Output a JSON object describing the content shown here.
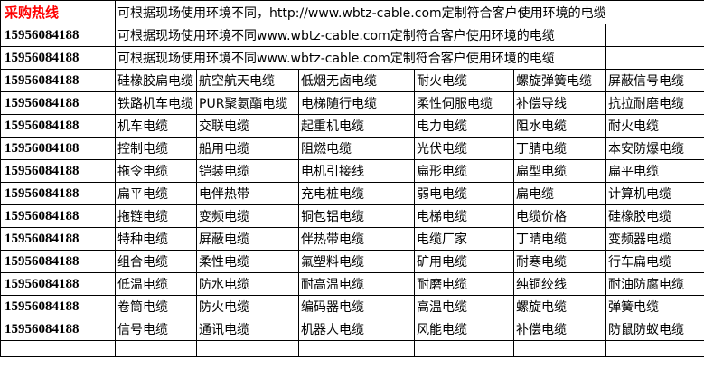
{
  "header": {
    "hotline_label": "采购热线",
    "hotline_color": "#ff0000",
    "note": "可根据现场使用环境不同，http://www.wbtz-cable.com定制符合客户使用环境的电缆"
  },
  "phone": "15956084188",
  "notes": [
    "可根据现场使用环境不同www.wbtz-cable.com定制符合客户使用环境的电缆",
    "可根据现场使用环境不同www.wbtz-cable.com定制符合客户使用环境的电缆"
  ],
  "rows": [
    [
      "15956084188",
      "硅橡胶扁电缆",
      "航空航天电缆",
      "低烟无卤电缆",
      "耐火电缆",
      "螺旋弹簧电缆",
      "屏蔽信号电缆"
    ],
    [
      "15956084188",
      "铁路机车电缆",
      "PUR聚氨酯电缆",
      "电梯随行电缆",
      "柔性伺服电缆",
      "补偿导线",
      "抗拉耐磨电缆"
    ],
    [
      "15956084188",
      "机车电缆",
      "交联电缆",
      "起重机电缆",
      "电力电缆",
      "阻水电缆",
      "耐火电缆"
    ],
    [
      "15956084188",
      "控制电缆",
      "船用电缆",
      "阻燃电缆",
      "光伏电缆",
      "丁腈电缆",
      "本安防爆电缆"
    ],
    [
      "15956084188",
      "拖令电缆",
      "铠装电缆",
      "电机引接线",
      "扁形电缆",
      "扁型电缆",
      "扁平电缆"
    ],
    [
      "15956084188",
      "扁平电缆",
      "电伴热带",
      "充电桩电缆",
      "弱电电缆",
      "扁电缆",
      "计算机电缆"
    ],
    [
      "15956084188",
      "拖链电缆",
      "变频电缆",
      "铜包铝电缆",
      "电梯电缆",
      "电缆价格",
      "硅橡胶电缆"
    ],
    [
      "15956084188",
      "特种电缆",
      "屏蔽电缆",
      "伴热带电缆",
      "电缆厂家",
      "丁晴电缆",
      "变频器电缆"
    ],
    [
      "15956084188",
      "组合电缆",
      "柔性电缆",
      "氟塑料电缆",
      "矿用电缆",
      "耐寒电缆",
      "行车扁电缆"
    ],
    [
      "15956084188",
      "低温电缆",
      "防水电缆",
      "耐高温电缆",
      "耐磨电缆",
      "纯铜绞线",
      "耐油防腐电缆"
    ],
    [
      "15956084188",
      "卷筒电缆",
      "防火电缆",
      "编码器电缆",
      "高温电缆",
      "螺旋电缆",
      "弹簧电缆"
    ],
    [
      "15956084188",
      "信号电缆",
      "通讯电缆",
      "机器人电缆",
      "风能电缆",
      "补偿电缆",
      "防鼠防蚁电缆"
    ]
  ]
}
